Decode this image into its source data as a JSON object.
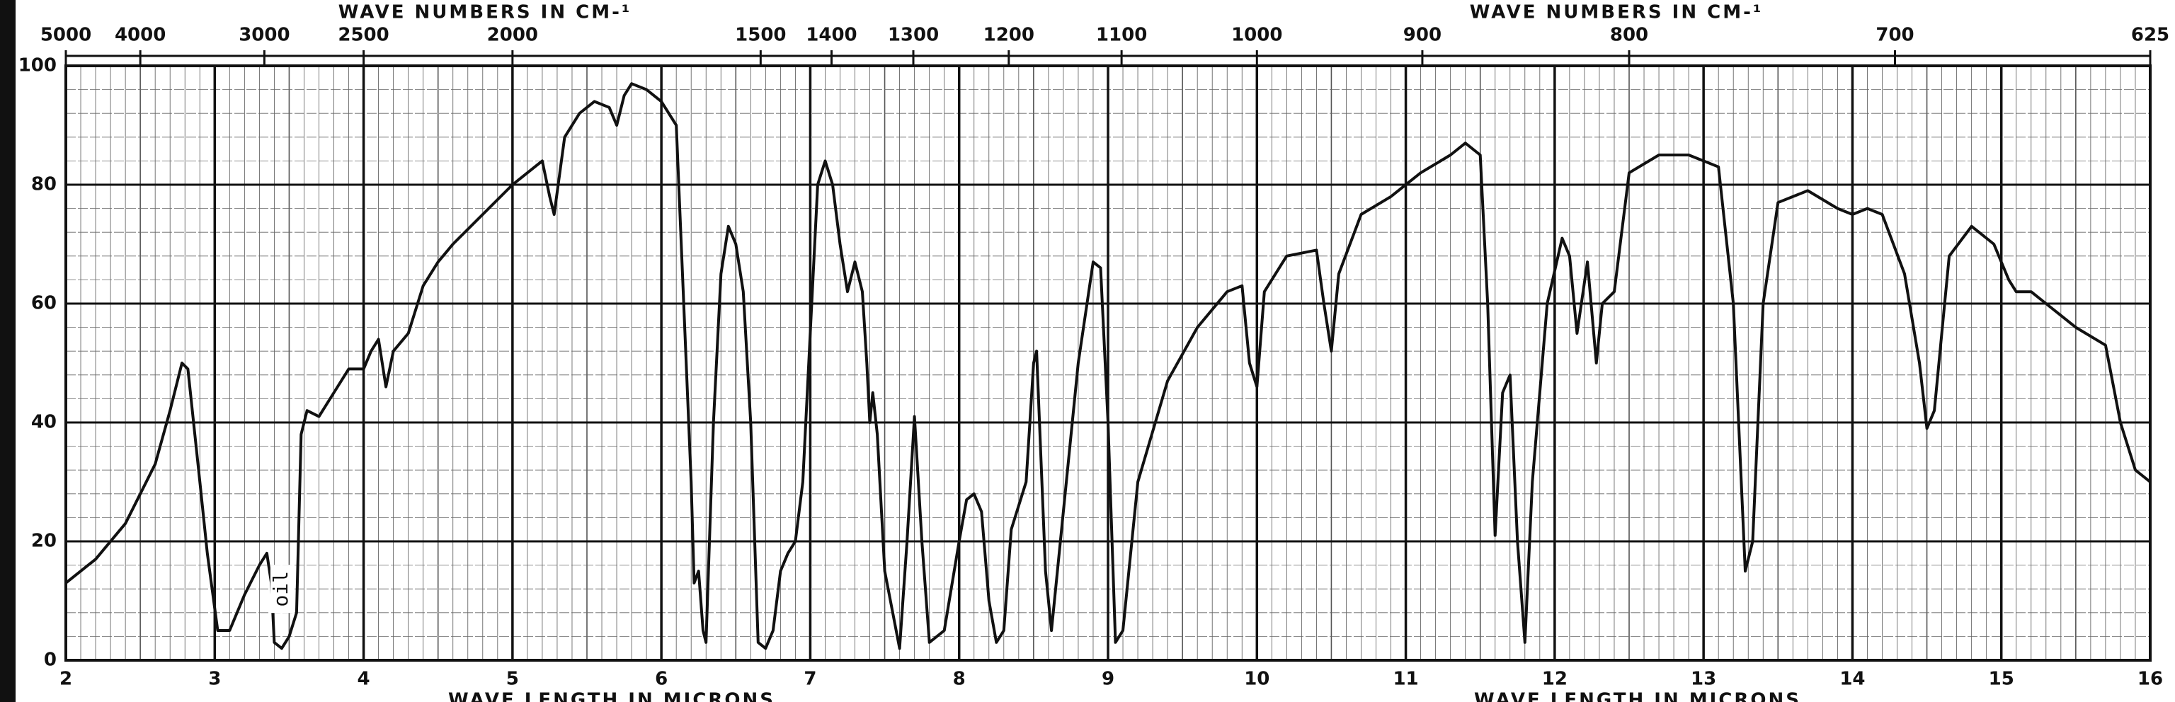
{
  "chart_data": {
    "type": "line",
    "x2_labels": [
      "WAVE NUMBERS IN CM-¹",
      "WAVE NUMBERS IN CM-¹"
    ],
    "x_labels": [
      "WAVE LENGTH IN MICRONS",
      "WAVE LENGTH IN MICRONS"
    ],
    "xlim": [
      2,
      16
    ],
    "xticks": [
      2,
      3,
      4,
      5,
      6,
      7,
      8,
      9,
      10,
      11,
      12,
      13,
      14,
      15,
      16
    ],
    "x2lim": [
      5000,
      625
    ],
    "x2scale": "reciprocal",
    "x2ticks": [
      5000,
      4000,
      3000,
      2500,
      2000,
      1500,
      1400,
      1300,
      1200,
      1100,
      1000,
      900,
      800,
      700,
      625
    ],
    "ylim": [
      0,
      100
    ],
    "yticks": [
      0,
      20,
      40,
      60,
      80,
      100
    ],
    "grid": true,
    "annotations": [
      {
        "text": "oil",
        "x": 3.45,
        "y": 12
      }
    ],
    "series": [
      {
        "color": "#111111",
        "x": [
          2.0,
          2.2,
          2.4,
          2.6,
          2.7,
          2.78,
          2.82,
          2.9,
          2.95,
          3.02,
          3.1,
          3.2,
          3.3,
          3.35,
          3.38,
          3.4,
          3.45,
          3.5,
          3.55,
          3.58,
          3.62,
          3.7,
          3.8,
          3.9,
          4.0,
          4.05,
          4.1,
          4.15,
          4.2,
          4.3,
          4.4,
          4.5,
          4.6,
          4.8,
          5.0,
          5.1,
          5.2,
          5.25,
          5.28,
          5.35,
          5.45,
          5.55,
          5.65,
          5.7,
          5.75,
          5.8,
          5.9,
          6.0,
          6.1,
          6.15,
          6.2,
          6.22,
          6.25,
          6.28,
          6.3,
          6.35,
          6.4,
          6.45,
          6.5,
          6.55,
          6.6,
          6.65,
          6.7,
          6.75,
          6.8,
          6.85,
          6.9,
          6.95,
          7.0,
          7.05,
          7.1,
          7.15,
          7.2,
          7.25,
          7.3,
          7.35,
          7.38,
          7.4,
          7.42,
          7.45,
          7.5,
          7.6,
          7.65,
          7.7,
          7.75,
          7.8,
          7.9,
          8.0,
          8.05,
          8.1,
          8.15,
          8.2,
          8.25,
          8.3,
          8.35,
          8.45,
          8.5,
          8.52,
          8.58,
          8.62,
          8.7,
          8.8,
          8.9,
          8.95,
          9.0,
          9.05,
          9.1,
          9.2,
          9.4,
          9.6,
          9.8,
          9.9,
          9.95,
          10.0,
          10.05,
          10.2,
          10.4,
          10.45,
          10.5,
          10.55,
          10.7,
          10.9,
          11.1,
          11.3,
          11.4,
          11.5,
          11.55,
          11.6,
          11.65,
          11.7,
          11.75,
          11.8,
          11.85,
          11.95,
          12.05,
          12.1,
          12.15,
          12.22,
          12.28,
          12.32,
          12.4,
          12.5,
          12.7,
          12.9,
          13.1,
          13.2,
          13.28,
          13.33,
          13.4,
          13.5,
          13.7,
          13.9,
          14.0,
          14.1,
          14.2,
          14.35,
          14.45,
          14.5,
          14.55,
          14.65,
          14.8,
          14.95,
          15.05,
          15.1,
          15.2,
          15.3,
          15.5,
          15.7,
          15.8,
          15.9,
          16.0
        ],
        "values": [
          13,
          17,
          23,
          33,
          42,
          50,
          49,
          30,
          18,
          5,
          5,
          11,
          16,
          18,
          13,
          3,
          2,
          4,
          8,
          38,
          42,
          41,
          45,
          49,
          49,
          52,
          54,
          46,
          52,
          55,
          63,
          67,
          70,
          75,
          80,
          82,
          84,
          78,
          75,
          88,
          92,
          94,
          93,
          90,
          95,
          97,
          96,
          94,
          90,
          60,
          30,
          13,
          15,
          5,
          3,
          40,
          65,
          73,
          70,
          62,
          40,
          3,
          2,
          5,
          15,
          18,
          20,
          30,
          55,
          80,
          84,
          80,
          70,
          62,
          67,
          62,
          50,
          40,
          45,
          38,
          15,
          2,
          20,
          41,
          20,
          3,
          5,
          20,
          27,
          28,
          25,
          10,
          3,
          5,
          22,
          30,
          50,
          52,
          15,
          5,
          25,
          50,
          67,
          66,
          40,
          3,
          5,
          30,
          47,
          56,
          62,
          63,
          50,
          46,
          62,
          68,
          69,
          60,
          52,
          65,
          75,
          78,
          82,
          85,
          87,
          85,
          60,
          21,
          45,
          48,
          20,
          3,
          30,
          60,
          71,
          68,
          55,
          67,
          50,
          60,
          62,
          82,
          85,
          85,
          83,
          60,
          15,
          20,
          60,
          77,
          79,
          76,
          75,
          76,
          75,
          65,
          50,
          39,
          42,
          68,
          73,
          70,
          64,
          62,
          62,
          60,
          56,
          53,
          40,
          32,
          30
        ]
      }
    ]
  }
}
